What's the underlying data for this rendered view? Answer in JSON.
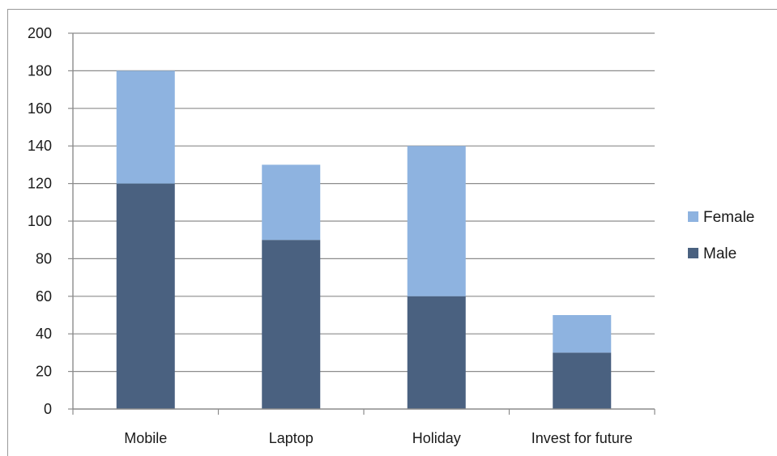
{
  "chart_data": {
    "type": "bar",
    "stacked": true,
    "title": "",
    "xlabel": "",
    "ylabel": "",
    "categories": [
      "Mobile",
      "Laptop",
      "Holiday",
      "Invest for future"
    ],
    "series": [
      {
        "name": "Male",
        "values": [
          120,
          90,
          60,
          30
        ],
        "color": "#4a6180"
      },
      {
        "name": "Female",
        "values": [
          60,
          40,
          80,
          20
        ],
        "color": "#8eb3e0"
      }
    ],
    "ylim": [
      0,
      200
    ],
    "yticks": [
      0,
      20,
      40,
      60,
      80,
      100,
      120,
      140,
      160,
      180,
      200
    ],
    "grid": true,
    "legend": {
      "placement": "right",
      "entries": [
        "Female",
        "Male"
      ]
    },
    "colors": {
      "gridline": "#8c8c8c",
      "axis": "#8c8c8c"
    }
  }
}
